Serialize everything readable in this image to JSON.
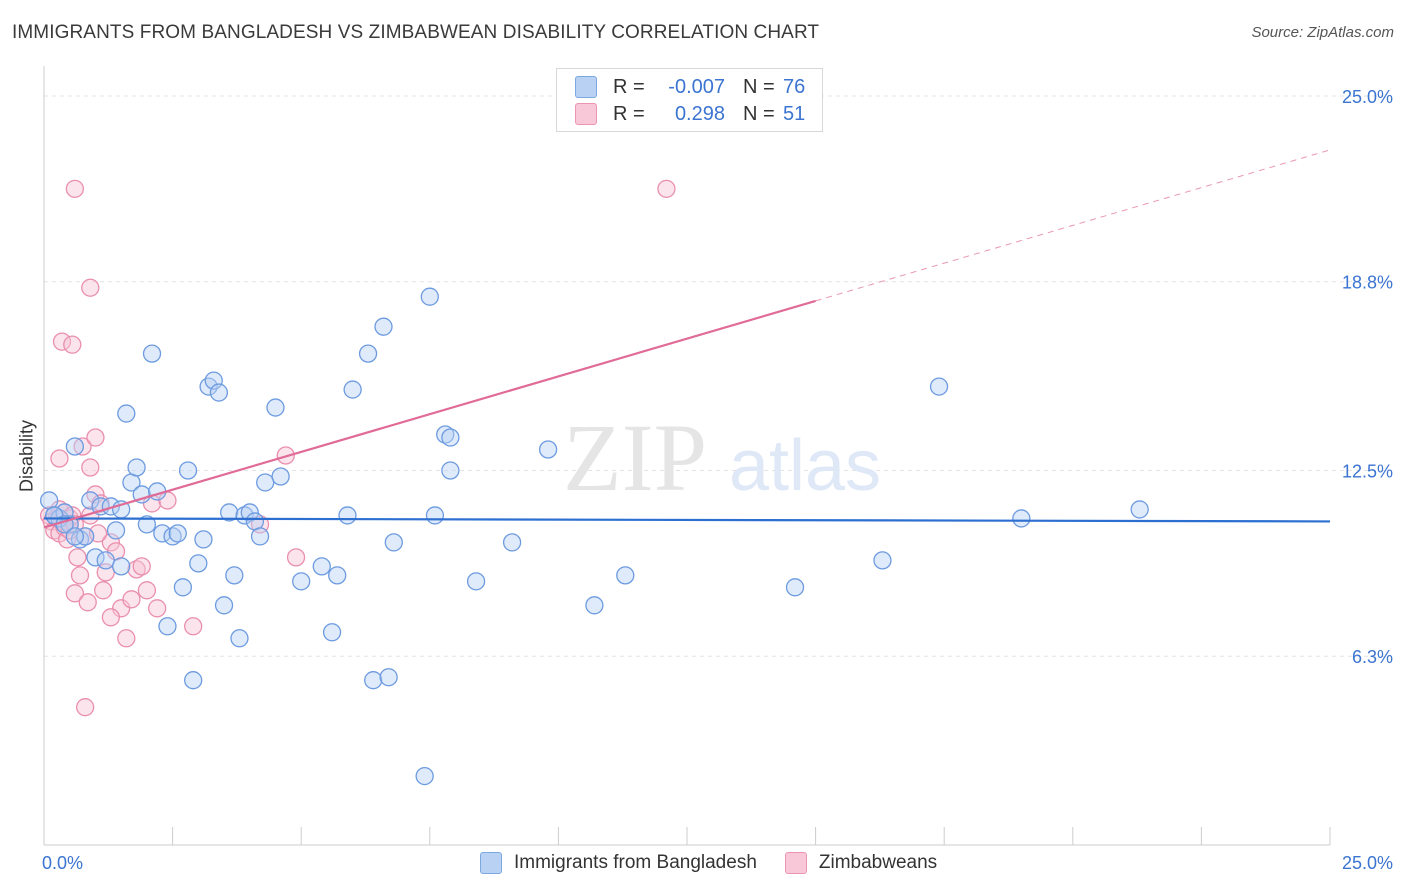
{
  "header": {
    "title": "IMMIGRANTS FROM BANGLADESH VS ZIMBABWEAN DISABILITY CORRELATION CHART",
    "source": "Source: ZipAtlas.com"
  },
  "legend_top": {
    "rows": [
      {
        "r_label": "R =",
        "r_value": "-0.007",
        "n_label": "N =",
        "n_value": "76"
      },
      {
        "r_label": "R =",
        "r_value": "0.298",
        "n_label": "N =",
        "n_value": "51"
      }
    ]
  },
  "legend_bottom": {
    "items": [
      "Immigrants from Bangladesh",
      "Zimbabweans"
    ]
  },
  "watermark": {
    "zip": "ZIP",
    "atlas": "atlas"
  },
  "colors": {
    "blue_fill": "#b9d1f3",
    "blue_stroke": "#6d9be0",
    "blue_line": "#2c6fd1",
    "pink_fill": "#f7c3d4",
    "pink_stroke": "#ea8fae",
    "pink_line": "#e06b96",
    "grid": "#e3e3e3",
    "tick_text": "#3b74d1"
  },
  "chart_data": {
    "type": "scatter",
    "title": "IMMIGRANTS FROM BANGLADESH VS ZIMBABWEAN DISABILITY CORRELATION CHART",
    "xlabel": "",
    "ylabel": "Disability",
    "xlim": [
      0,
      25
    ],
    "ylim": [
      0,
      26
    ],
    "x_tick_labels": [
      "0.0%",
      "25.0%"
    ],
    "y_ticks": [
      6.3,
      12.5,
      18.8,
      25.0
    ],
    "y_tick_labels": [
      "6.3%",
      "12.5%",
      "18.8%",
      "25.0%"
    ],
    "grid": true,
    "series": [
      {
        "name": "Immigrants from Bangladesh",
        "color": "#6d9be0",
        "r": "-0.007",
        "n": "76",
        "trend": {
          "x0": 0,
          "y0": 10.9,
          "x1": 25,
          "y1": 10.8,
          "dashed_from": null
        },
        "points": [
          [
            0.1,
            11.5
          ],
          [
            0.2,
            11.0
          ],
          [
            0.3,
            10.9
          ],
          [
            0.4,
            11.1
          ],
          [
            0.5,
            10.7
          ],
          [
            0.6,
            13.3
          ],
          [
            0.7,
            10.2
          ],
          [
            0.8,
            10.3
          ],
          [
            0.9,
            11.5
          ],
          [
            1.0,
            9.6
          ],
          [
            1.1,
            11.3
          ],
          [
            1.2,
            9.5
          ],
          [
            1.3,
            11.3
          ],
          [
            1.4,
            10.5
          ],
          [
            1.5,
            9.3
          ],
          [
            1.6,
            14.4
          ],
          [
            1.7,
            12.1
          ],
          [
            1.8,
            12.6
          ],
          [
            1.9,
            11.7
          ],
          [
            2.0,
            10.7
          ],
          [
            2.1,
            16.4
          ],
          [
            2.2,
            11.8
          ],
          [
            2.3,
            10.4
          ],
          [
            2.4,
            7.3
          ],
          [
            2.5,
            10.3
          ],
          [
            2.6,
            10.4
          ],
          [
            2.7,
            8.6
          ],
          [
            2.8,
            12.5
          ],
          [
            2.9,
            5.5
          ],
          [
            3.0,
            9.4
          ],
          [
            3.1,
            10.2
          ],
          [
            3.2,
            15.3
          ],
          [
            3.3,
            15.5
          ],
          [
            3.4,
            15.1
          ],
          [
            3.5,
            8.0
          ],
          [
            3.6,
            11.1
          ],
          [
            3.7,
            9.0
          ],
          [
            3.8,
            6.9
          ],
          [
            3.9,
            11.0
          ],
          [
            4.0,
            11.1
          ],
          [
            4.1,
            10.8
          ],
          [
            4.2,
            10.3
          ],
          [
            4.3,
            12.1
          ],
          [
            4.5,
            14.6
          ],
          [
            4.6,
            12.3
          ],
          [
            5.0,
            8.8
          ],
          [
            5.4,
            9.3
          ],
          [
            5.6,
            7.1
          ],
          [
            5.7,
            9.0
          ],
          [
            5.9,
            11.0
          ],
          [
            6.0,
            15.2
          ],
          [
            6.3,
            16.4
          ],
          [
            6.4,
            5.5
          ],
          [
            6.6,
            17.3
          ],
          [
            6.7,
            5.6
          ],
          [
            6.8,
            10.1
          ],
          [
            7.4,
            2.3
          ],
          [
            7.5,
            18.3
          ],
          [
            7.6,
            11.0
          ],
          [
            7.8,
            13.7
          ],
          [
            7.9,
            12.5
          ],
          [
            7.9,
            13.6
          ],
          [
            8.4,
            8.8
          ],
          [
            9.1,
            10.1
          ],
          [
            9.8,
            13.2
          ],
          [
            10.7,
            8.0
          ],
          [
            11.3,
            9.0
          ],
          [
            14.6,
            8.6
          ],
          [
            16.3,
            9.5
          ],
          [
            19.0,
            10.9
          ],
          [
            21.3,
            11.2
          ],
          [
            17.4,
            15.3
          ],
          [
            0.2,
            11.0
          ],
          [
            0.4,
            10.7
          ],
          [
            0.6,
            10.3
          ],
          [
            1.5,
            11.2
          ]
        ]
      },
      {
        "name": "Zimbabweans",
        "color": "#ea8fae",
        "r": "0.298",
        "n": "51",
        "trend": {
          "x0": 0,
          "y0": 10.6,
          "x1": 25,
          "y1": 23.2,
          "dashed_from": 15.0
        },
        "points": [
          [
            0.1,
            11.0
          ],
          [
            0.15,
            10.8
          ],
          [
            0.2,
            10.5
          ],
          [
            0.25,
            10.9
          ],
          [
            0.3,
            11.2
          ],
          [
            0.3,
            10.4
          ],
          [
            0.35,
            10.8
          ],
          [
            0.4,
            11.1
          ],
          [
            0.4,
            10.6
          ],
          [
            0.45,
            10.2
          ],
          [
            0.5,
            10.9
          ],
          [
            0.5,
            10.5
          ],
          [
            0.55,
            11.0
          ],
          [
            0.6,
            10.7
          ],
          [
            0.6,
            8.4
          ],
          [
            0.65,
            9.6
          ],
          [
            0.7,
            9.0
          ],
          [
            0.75,
            13.3
          ],
          [
            0.8,
            10.3
          ],
          [
            0.85,
            8.1
          ],
          [
            0.3,
            12.9
          ],
          [
            0.35,
            16.8
          ],
          [
            0.55,
            16.7
          ],
          [
            0.6,
            21.9
          ],
          [
            0.9,
            18.6
          ],
          [
            0.9,
            12.6
          ],
          [
            1.0,
            11.7
          ],
          [
            1.0,
            13.6
          ],
          [
            1.1,
            11.4
          ],
          [
            1.2,
            9.1
          ],
          [
            1.3,
            10.1
          ],
          [
            1.4,
            9.8
          ],
          [
            1.5,
            7.9
          ],
          [
            1.6,
            6.9
          ],
          [
            1.7,
            8.2
          ],
          [
            1.8,
            9.2
          ],
          [
            1.9,
            9.3
          ],
          [
            2.0,
            8.5
          ],
          [
            2.1,
            11.4
          ],
          [
            2.2,
            7.9
          ],
          [
            0.8,
            4.6
          ],
          [
            2.9,
            7.3
          ],
          [
            4.2,
            10.7
          ],
          [
            4.7,
            13.0
          ],
          [
            4.9,
            9.6
          ],
          [
            12.1,
            21.9
          ],
          [
            1.3,
            7.6
          ],
          [
            0.9,
            11.0
          ],
          [
            1.05,
            10.4
          ],
          [
            1.15,
            8.5
          ],
          [
            2.4,
            11.5
          ]
        ]
      }
    ]
  }
}
